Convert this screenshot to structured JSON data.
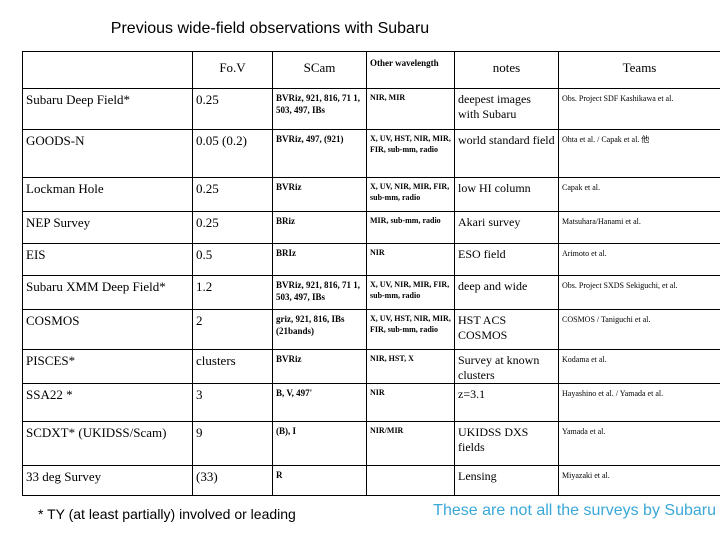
{
  "title": "Previous wide-field observations with Subaru",
  "columns": [
    "",
    "Fo.V",
    "SCam",
    "Other wavelength",
    "notes",
    "Teams"
  ],
  "rows": [
    {
      "field": "Subaru Deep Field*",
      "fov": "0.25",
      "scam": "BVRiz, 921, 816, 71 1, 503, 497, IBs",
      "wave": "NIR, MIR",
      "notes": "deepest images with Subaru",
      "teams": "Obs. Project SDF Kashikawa et al."
    },
    {
      "field": "GOODS-N",
      "fov": "0.05 (0.2)",
      "scam": "BVRiz, 497, (921)",
      "wave": "X, UV, HST, NIR, MIR, FIR, sub-mm, radio",
      "notes": "world standard field",
      "teams": "Ohta et al. / Capak et al. 他"
    },
    {
      "field": "Lockman Hole",
      "fov": "0.25",
      "scam": "BVRiz",
      "wave": "X, UV, NIR, MIR, FIR, sub-mm, radio",
      "notes": "low HI column",
      "teams": "Capak et al."
    },
    {
      "field": "NEP Survey",
      "fov": "0.25",
      "scam": "BRiz",
      "wave": "MIR, sub-mm, radio",
      "notes": "Akari survey",
      "teams": "Matsuhara/Hanami et al."
    },
    {
      "field": "EIS",
      "fov": "0.5",
      "scam": "BRIz",
      "wave": "NIR",
      "notes": "ESO field",
      "teams": "Arimoto et al."
    },
    {
      "field": "Subaru XMM Deep Field*",
      "fov": "1.2",
      "scam": "BVRiz, 921, 816, 71 1, 503, 497, IBs",
      "wave": "X, UV, NIR, MIR, FIR, sub-mm, radio",
      "notes": "deep and wide",
      "teams": "Obs. Project SXDS Sekiguchi, et al."
    },
    {
      "field": "COSMOS",
      "fov": "2",
      "scam": "griz, 921, 816, IBs (21bands)",
      "wave": "X, UV, HST, NIR, MIR, FIR, sub-mm, radio",
      "notes": "HST ACS COSMOS",
      "teams": "COSMOS / Taniguchi et al."
    },
    {
      "field": "PISCES*",
      "fov": "clusters",
      "scam": "BVRiz",
      "wave": "NIR, HST, X",
      "notes": "Survey at known clusters",
      "teams": "Kodama et al."
    },
    {
      "field": "SSA22 *",
      "fov": "3",
      "scam": "B, V, 497'",
      "wave": "NIR",
      "notes": "z=3.1",
      "teams": "Hayashino et al. / Yamada et al."
    },
    {
      "field": "SCDXT* (UKIDSS/Scam)",
      "fov": "9",
      "scam": "(B), I",
      "wave": "NIR/MIR",
      "notes": "UKIDSS DXS fields",
      "teams": "Yamada et al."
    },
    {
      "field": "33 deg Survey",
      "fov": "(33)",
      "scam": "R",
      "wave": "",
      "notes": "Lensing",
      "teams": "Miyazaki et al."
    }
  ],
  "footnote": "* TY (at least partially) involved or leading",
  "disclaimer": "These are not all the surveys by Subaru",
  "colors": {
    "disclaimer": "#3aa8d8"
  }
}
